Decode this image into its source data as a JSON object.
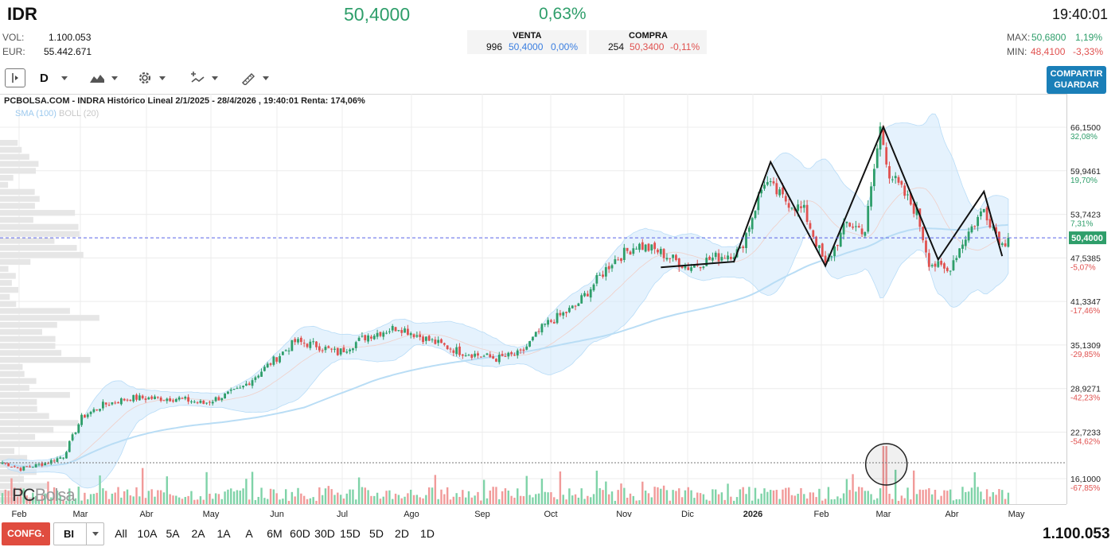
{
  "header": {
    "ticker": "IDR",
    "price": "50,4000",
    "change": "0,63%",
    "time": "19:40:01",
    "vol_label": "VOL:",
    "vol_value": "1.100.053",
    "eur_label": "EUR:",
    "eur_value": "55.442.671",
    "venta": {
      "label": "VENTA",
      "qty": "996",
      "price": "50,4000",
      "pct": "0,00%"
    },
    "compra": {
      "label": "COMPRA",
      "qty": "254",
      "price": "50,3400",
      "pct": "-0,11%"
    },
    "max_label": "MAX:",
    "max_value": "50,6800",
    "max_pct": "1,19%",
    "min_label": "MIN:",
    "min_value": "48,4100",
    "min_pct": "-3,33%"
  },
  "toolbar": {
    "period": "D",
    "share_label": "COMPARTIR",
    "save_label": "GUARDAR"
  },
  "chart_header": "PCBOLSA.COM - INDRA Histórico Lineal 2/1/2025 - 28/4/2026 , 19:40:01 Renta: 174,06%",
  "legend": {
    "sma": "SMA (100)",
    "boll": "BOLL (20)"
  },
  "watermark": {
    "a": "PC",
    "b": "Bolsa"
  },
  "bottom": {
    "config_label": "CONFG.",
    "scale_select": "BI",
    "periods": [
      "All",
      "10A",
      "5A",
      "2A",
      "1A",
      "A",
      "6M",
      "60D",
      "30D",
      "15D",
      "5D",
      "2D",
      "1D"
    ],
    "volume": "1.100.053"
  },
  "colors": {
    "up": "#2e9e6a",
    "down": "#e0514f",
    "band": "#cfe8fb",
    "sma": "#b9ddf5",
    "accent": "#1a7fb8",
    "config": "#e04c3f"
  },
  "chart_data": {
    "type": "candlestick",
    "title": "PCBOLSA.COM - INDRA Histórico Lineal 2/1/2025 - 28/4/2026 , 19:40:01 Renta: 174,06%",
    "ylim": [
      12.5,
      70.5
    ],
    "y_ticks": [
      {
        "value": 66.15,
        "label": "66,1500",
        "pct": "32,08%"
      },
      {
        "value": 59.9461,
        "label": "59,9461",
        "pct": "19,70%"
      },
      {
        "value": 53.7423,
        "label": "53,7423",
        "pct": "7,31%"
      },
      {
        "value": 47.5385,
        "label": "47,5385",
        "pct": "-5,07%"
      },
      {
        "value": 41.3347,
        "label": "41,3347",
        "pct": "-17,46%"
      },
      {
        "value": 35.1309,
        "label": "35,1309",
        "pct": "-29,85%"
      },
      {
        "value": 28.9271,
        "label": "28,9271",
        "pct": "-42,23%"
      },
      {
        "value": 22.7233,
        "label": "22,7233",
        "pct": "-54,62%"
      },
      {
        "value": 16.1,
        "label": "16,1000",
        "pct": "-67,85%"
      }
    ],
    "x_labels": [
      "Feb",
      "Mar",
      "Abr",
      "May",
      "Jun",
      "Jul",
      "Ago",
      "Sep",
      "Oct",
      "Nov",
      "Dic",
      "2026",
      "Feb",
      "Mar",
      "Abr",
      "May"
    ],
    "last_price": 50.4,
    "last_price_label": "50,4000",
    "sma_period": 100,
    "bollinger_period": 20,
    "start_close": 18.4,
    "close_anchors": [
      [
        0,
        18.4
      ],
      [
        6,
        17.5
      ],
      [
        14,
        18.3
      ],
      [
        20,
        19.3
      ],
      [
        26,
        24.8
      ],
      [
        33,
        26.6
      ],
      [
        42,
        27.6
      ],
      [
        58,
        27.5
      ],
      [
        66,
        26.8
      ],
      [
        78,
        28.8
      ],
      [
        96,
        35.6
      ],
      [
        103,
        35.1
      ],
      [
        110,
        34.0
      ],
      [
        120,
        36.5
      ],
      [
        130,
        37.7
      ],
      [
        140,
        35.8
      ],
      [
        150,
        34.2
      ],
      [
        162,
        33.2
      ],
      [
        170,
        33.9
      ],
      [
        178,
        38.0
      ],
      [
        188,
        40.6
      ],
      [
        200,
        47.0
      ],
      [
        208,
        49.4
      ],
      [
        215,
        48.5
      ],
      [
        225,
        46.2
      ],
      [
        233,
        47.5
      ],
      [
        242,
        48.5
      ],
      [
        250,
        58.5
      ],
      [
        256,
        56.0
      ],
      [
        263,
        54.2
      ],
      [
        270,
        46.4
      ],
      [
        277,
        52.5
      ],
      [
        283,
        51.4
      ],
      [
        288,
        66.0
      ],
      [
        291,
        59.6
      ],
      [
        300,
        54.0
      ],
      [
        304,
        47.0
      ],
      [
        310,
        45.6
      ],
      [
        316,
        50.6
      ],
      [
        322,
        54.5
      ],
      [
        328,
        49.4
      ],
      [
        330,
        50.4
      ]
    ],
    "pattern_line": [
      [
        216,
        46.2
      ],
      [
        240,
        47.0
      ],
      [
        252,
        61.2
      ],
      [
        270,
        46.4
      ],
      [
        289,
        66.2
      ],
      [
        307,
        47.3
      ],
      [
        322,
        57.0
      ],
      [
        328,
        47.8
      ]
    ],
    "highlight_day": 290,
    "volume_axis_value": 16.1
  }
}
